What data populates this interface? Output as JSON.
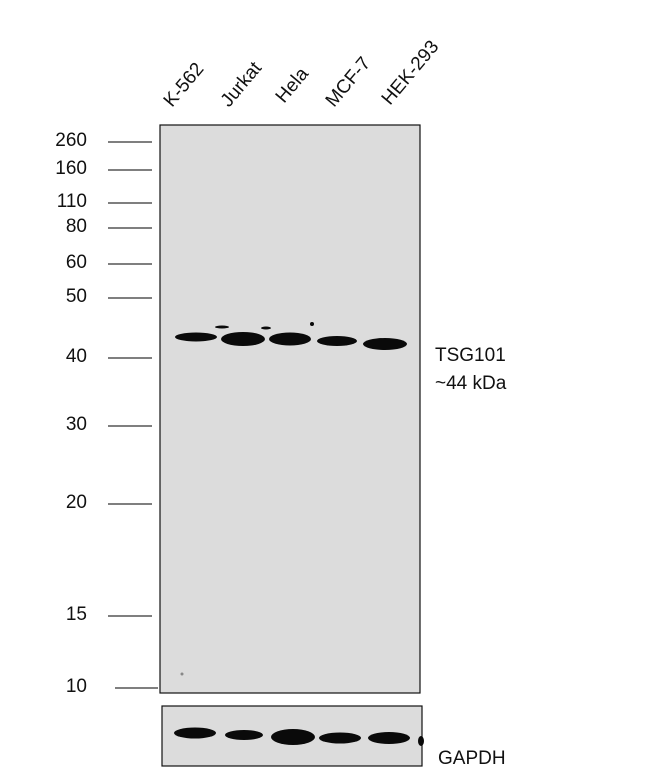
{
  "lanes": [
    "K-562",
    "Jurkat",
    "Hela",
    "MCF-7",
    "HEK-293"
  ],
  "markers": [
    260,
    160,
    110,
    80,
    60,
    50,
    40,
    30,
    20,
    15,
    10
  ],
  "target": {
    "name": "TSG101",
    "size": "~44 kDa"
  },
  "loading_control": "GAPDH"
}
